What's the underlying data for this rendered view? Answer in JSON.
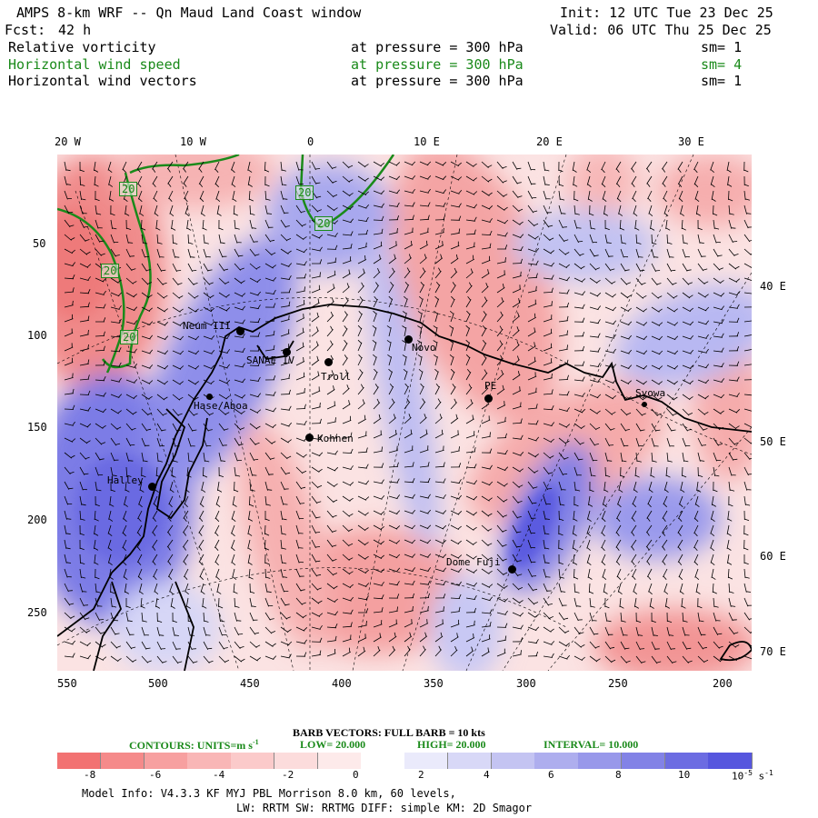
{
  "header": {
    "title": "AMPS 8-km WRF -- Qn Maud Land Coast window",
    "init": "Init: 12 UTC Tue 23 Dec 25",
    "fcst_label": "Fcst:",
    "fcst_value": "42 h",
    "valid": "Valid: 06 UTC Thu 25 Dec 25",
    "fields": [
      {
        "name": "Relative vorticity",
        "level": "at pressure =  300 hPa",
        "sm": "sm= 1",
        "color": "#000000"
      },
      {
        "name": "Horizontal wind speed",
        "level": "at pressure =  300 hPa",
        "sm": "sm= 4",
        "color": "#1a8a1a"
      },
      {
        "name": "Horizontal wind vectors",
        "level": "at pressure =  300 hPa",
        "sm": "sm= 1",
        "color": "#000000"
      }
    ]
  },
  "axes": {
    "top_lon": [
      "20 W",
      "10 W",
      "0",
      "10 E",
      "20 E",
      "30 E"
    ],
    "right_lon": [
      "40 E",
      "50 E",
      "60 E",
      "70 E"
    ],
    "left_y": [
      "50",
      "100",
      "150",
      "200",
      "250"
    ],
    "bottom_x": [
      "550",
      "500",
      "450",
      "400",
      "350",
      "300",
      "250",
      "200"
    ]
  },
  "stations": [
    {
      "name": "Neum III",
      "id": "neumayer"
    },
    {
      "name": "SANAE IV",
      "id": "sanae"
    },
    {
      "name": "Troll",
      "id": "troll"
    },
    {
      "name": "Novo",
      "id": "novo"
    },
    {
      "name": "PE",
      "id": "pe"
    },
    {
      "name": "Syowa",
      "id": "syowa"
    },
    {
      "name": "Kohnen",
      "id": "kohnen"
    },
    {
      "name": "Hase/Aboa",
      "id": "aboa"
    },
    {
      "name": "Halley",
      "id": "halley"
    },
    {
      "name": "Dome Fuji",
      "id": "domefuji"
    }
  ],
  "contour_labels": [
    "20",
    "20",
    "20",
    "20",
    "20"
  ],
  "footer": {
    "barb_line": "BARB VECTORS:  FULL BARB = 10 kts",
    "contours_label": "CONTOURS:  UNITS=m s",
    "units_sup": "-1",
    "low": "LOW=   20.000",
    "high": "HIGH=   20.000",
    "interval": "INTERVAL=    10.000",
    "colorbar_ticks": [
      "-8",
      "-6",
      "-4",
      "-2",
      "0",
      "2",
      "4",
      "6",
      "8",
      "10"
    ],
    "colorbar_unit": "10",
    "colorbar_unit_sup": "-5",
    "colorbar_unit_tail": "s",
    "colorbar_unit_tail_sup": "-1",
    "colorbar_colors": [
      "#f27272",
      "#f58a8a",
      "#f7a0a0",
      "#f9b6b6",
      "#fbcaca",
      "#fcdcdc",
      "#fdeaea",
      "#ffffff",
      "#eaeafb",
      "#d8d8f7",
      "#c4c4f2",
      "#aeaeee",
      "#9898ea",
      "#8282e6",
      "#6c6ce2",
      "#5656de"
    ],
    "model_info": "Model Info: V4.3.3   KF      MYJ PBL  Morrison              8.0 km,  60 levels,",
    "model_info2": "LW: RRTM SW: RRTMG   DIFF: simple KM: 2D Smagor"
  },
  "colors": {
    "positive": "#5a5ae0",
    "negative": "#f07070",
    "contour": "#1a8a1a"
  }
}
